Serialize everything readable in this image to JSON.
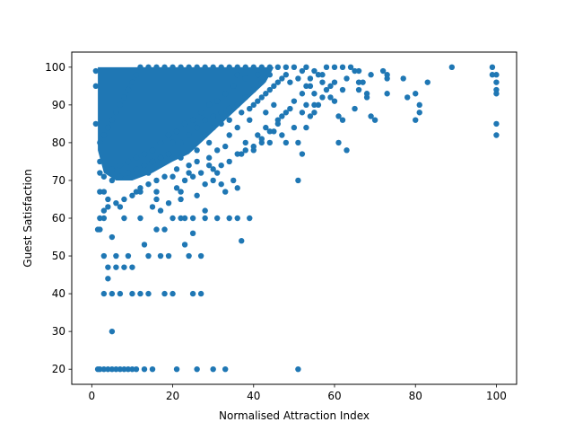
{
  "chart_data": {
    "type": "scatter",
    "title": "",
    "xlabel": "Normalised Attraction Index",
    "ylabel": "Guest Satisfaction",
    "xlim": [
      -4.95,
      105.0
    ],
    "ylim": [
      16.0,
      104.0
    ],
    "x_ticks": [
      0,
      20,
      40,
      60,
      80,
      100
    ],
    "y_ticks": [
      20,
      30,
      40,
      50,
      60,
      70,
      80,
      90,
      100
    ],
    "grid": false,
    "legend": "none",
    "marker_color": "#1f77b4",
    "series": [
      {
        "values": [
          [
            89,
            100
          ],
          [
            99,
            100
          ],
          [
            100,
            98
          ],
          [
            100,
            96
          ],
          [
            100,
            94
          ],
          [
            100,
            93
          ],
          [
            100,
            85
          ],
          [
            100,
            82
          ],
          [
            99,
            98
          ],
          [
            83,
            96
          ],
          [
            81,
            88
          ],
          [
            81,
            90
          ],
          [
            80,
            93
          ],
          [
            80,
            86
          ],
          [
            78,
            92
          ],
          [
            77,
            97
          ],
          [
            73,
            93
          ],
          [
            73,
            97
          ],
          [
            73,
            98
          ],
          [
            70,
            86
          ],
          [
            69,
            87
          ],
          [
            68,
            93
          ],
          [
            68,
            92
          ],
          [
            66,
            96
          ],
          [
            66,
            94
          ],
          [
            65,
            89
          ],
          [
            65,
            99
          ],
          [
            63,
            78
          ],
          [
            62,
            86
          ],
          [
            62,
            94
          ],
          [
            61,
            80
          ],
          [
            61,
            87
          ],
          [
            60,
            91
          ],
          [
            60,
            96
          ],
          [
            59,
            92
          ],
          [
            58,
            94
          ],
          [
            57,
            98
          ],
          [
            56,
            90
          ],
          [
            55,
            93
          ],
          [
            55,
            88
          ],
          [
            54,
            87
          ],
          [
            53,
            84
          ],
          [
            53,
            90
          ],
          [
            52,
            77
          ],
          [
            51,
            70
          ],
          [
            51,
            20
          ],
          [
            51,
            80
          ],
          [
            48,
            80
          ],
          [
            48,
            88
          ],
          [
            46,
            86
          ],
          [
            45,
            83
          ],
          [
            45,
            90
          ],
          [
            44,
            80
          ],
          [
            43,
            88
          ],
          [
            42,
            80
          ],
          [
            41,
            82
          ],
          [
            40,
            78
          ],
          [
            38,
            80
          ],
          [
            37,
            77
          ],
          [
            37,
            54
          ],
          [
            36,
            68
          ],
          [
            35,
            70
          ],
          [
            34,
            60
          ],
          [
            33,
            67
          ],
          [
            32,
            69
          ],
          [
            31,
            72
          ],
          [
            30,
            70
          ],
          [
            29,
            74
          ],
          [
            28,
            69
          ],
          [
            28,
            60
          ],
          [
            27,
            50
          ],
          [
            27,
            40
          ],
          [
            26,
            66
          ],
          [
            26,
            20
          ],
          [
            25,
            60
          ],
          [
            25,
            56
          ],
          [
            25,
            40
          ],
          [
            24,
            50
          ],
          [
            23,
            53
          ],
          [
            22,
            60
          ],
          [
            22,
            67
          ],
          [
            21,
            20
          ],
          [
            20,
            40
          ],
          [
            20,
            60
          ],
          [
            19,
            50
          ],
          [
            18,
            40
          ],
          [
            18,
            57
          ],
          [
            17,
            50
          ],
          [
            17,
            62
          ],
          [
            16,
            57
          ],
          [
            16,
            65
          ],
          [
            15,
            20
          ],
          [
            15,
            63
          ],
          [
            14,
            40
          ],
          [
            14,
            50
          ],
          [
            13,
            20
          ],
          [
            13,
            53
          ],
          [
            12,
            40
          ],
          [
            12,
            60
          ],
          [
            11,
            67
          ],
          [
            11,
            20
          ],
          [
            10,
            47
          ],
          [
            10,
            40
          ],
          [
            10,
            20
          ],
          [
            9,
            50
          ],
          [
            9,
            20
          ],
          [
            8,
            47
          ],
          [
            8,
            20
          ],
          [
            8,
            60
          ],
          [
            7,
            40
          ],
          [
            7,
            20
          ],
          [
            7,
            63
          ],
          [
            6,
            50
          ],
          [
            6,
            47
          ],
          [
            6,
            20
          ],
          [
            5,
            30
          ],
          [
            5,
            40
          ],
          [
            5,
            55
          ],
          [
            5,
            20
          ],
          [
            4,
            44
          ],
          [
            4,
            47
          ],
          [
            4,
            20
          ],
          [
            4,
            65
          ],
          [
            3,
            40
          ],
          [
            3,
            50
          ],
          [
            3,
            20
          ],
          [
            3,
            60
          ],
          [
            2,
            20
          ],
          [
            2,
            57
          ],
          [
            2,
            67
          ],
          [
            1.5,
            20
          ],
          [
            1.5,
            57
          ],
          [
            1,
            85
          ],
          [
            1,
            95
          ],
          [
            1,
            99
          ],
          [
            2,
            72
          ],
          [
            30,
            20
          ],
          [
            33,
            20
          ],
          [
            23,
            60
          ],
          [
            24,
            72
          ],
          [
            29,
            76
          ],
          [
            31,
            60
          ],
          [
            39,
            60
          ],
          [
            36,
            60
          ],
          [
            28,
            62
          ],
          [
            22,
            65
          ],
          [
            19,
            64
          ],
          [
            21,
            68
          ],
          [
            23,
            70
          ],
          [
            25,
            71
          ],
          [
            27,
            72
          ],
          [
            30,
            73
          ],
          [
            32,
            74
          ],
          [
            34,
            75
          ],
          [
            36,
            77
          ],
          [
            38,
            78
          ],
          [
            40,
            79
          ],
          [
            42,
            81
          ],
          [
            44,
            83
          ],
          [
            46,
            85
          ],
          [
            47,
            87
          ],
          [
            49,
            89
          ],
          [
            50,
            91
          ],
          [
            52,
            93
          ],
          [
            53,
            95
          ],
          [
            54,
            97
          ],
          [
            56,
            98
          ],
          [
            58,
            100
          ],
          [
            60,
            100
          ],
          [
            62,
            100
          ],
          [
            64,
            100
          ],
          [
            66,
            99
          ],
          [
            48,
            98
          ],
          [
            46,
            96
          ],
          [
            44,
            94
          ],
          [
            42,
            92
          ],
          [
            40,
            90
          ],
          [
            39,
            86
          ],
          [
            43,
            84
          ],
          [
            47,
            82
          ],
          [
            50,
            84
          ],
          [
            52,
            88
          ],
          [
            55,
            90
          ],
          [
            57,
            92
          ],
          [
            59,
            95
          ],
          [
            63,
            97
          ],
          [
            67,
            96
          ],
          [
            69,
            98
          ],
          [
            72,
            99
          ],
          [
            36,
            84
          ],
          [
            34,
            82
          ],
          [
            33,
            79
          ],
          [
            31,
            78
          ],
          [
            29,
            80
          ],
          [
            26,
            75
          ],
          [
            24,
            74
          ],
          [
            21,
            73
          ],
          [
            18,
            71
          ],
          [
            16,
            70
          ],
          [
            14,
            69
          ],
          [
            12,
            67
          ],
          [
            10,
            66
          ],
          [
            8,
            65
          ],
          [
            6,
            64
          ],
          [
            4,
            63
          ],
          [
            3,
            62
          ],
          [
            2,
            60
          ],
          [
            3,
            67
          ],
          [
            5,
            70
          ],
          [
            7,
            71
          ],
          [
            9,
            72
          ],
          [
            11,
            73
          ],
          [
            13,
            74
          ],
          [
            15,
            75
          ],
          [
            17,
            76
          ],
          [
            19,
            77
          ],
          [
            20,
            80
          ],
          [
            22,
            80
          ],
          [
            24,
            82
          ],
          [
            26,
            84
          ],
          [
            28,
            86
          ],
          [
            30,
            87
          ],
          [
            32,
            88
          ],
          [
            34,
            89
          ],
          [
            36,
            90
          ],
          [
            38,
            92
          ],
          [
            40,
            94
          ],
          [
            42,
            96
          ],
          [
            44,
            98
          ],
          [
            46,
            100
          ],
          [
            48,
            100
          ],
          [
            50,
            100
          ],
          [
            52,
            99
          ],
          [
            53,
            100
          ],
          [
            55,
            99
          ],
          [
            41,
            98
          ],
          [
            38,
            100
          ],
          [
            36,
            98
          ],
          [
            35,
            95
          ],
          [
            33,
            93
          ],
          [
            31,
            91
          ],
          [
            29,
            90
          ],
          [
            27,
            88
          ],
          [
            25,
            86
          ],
          [
            23,
            85
          ],
          [
            21,
            83
          ],
          [
            19,
            82
          ],
          [
            17,
            80
          ],
          [
            15,
            78
          ],
          [
            13,
            77
          ],
          [
            11,
            76
          ],
          [
            9,
            75
          ],
          [
            7,
            74
          ],
          [
            5,
            73
          ],
          [
            3,
            71
          ],
          [
            2,
            75
          ],
          [
            2,
            80
          ],
          [
            3,
            82
          ],
          [
            4,
            84
          ],
          [
            5,
            86
          ],
          [
            6,
            88
          ],
          [
            7,
            90
          ],
          [
            8,
            92
          ],
          [
            9,
            94
          ],
          [
            10,
            96
          ],
          [
            11,
            98
          ],
          [
            12,
            100
          ],
          [
            14,
            100
          ],
          [
            16,
            100
          ],
          [
            18,
            100
          ],
          [
            20,
            100
          ],
          [
            22,
            100
          ],
          [
            24,
            100
          ],
          [
            26,
            100
          ],
          [
            28,
            100
          ],
          [
            30,
            100
          ],
          [
            32,
            100
          ],
          [
            34,
            100
          ],
          [
            36,
            100
          ],
          [
            38,
            97
          ],
          [
            40,
            100
          ],
          [
            42,
            100
          ],
          [
            44,
            100
          ],
          [
            22,
            76
          ],
          [
            14,
            72
          ],
          [
            12,
            68
          ],
          [
            16,
            67
          ],
          [
            20,
            71
          ],
          [
            26,
            78
          ],
          [
            28,
            82
          ],
          [
            30,
            84
          ],
          [
            32,
            85
          ],
          [
            34,
            86
          ],
          [
            37,
            88
          ],
          [
            39,
            89
          ],
          [
            41,
            91
          ],
          [
            43,
            93
          ],
          [
            45,
            95
          ],
          [
            47,
            97
          ],
          [
            49,
            96
          ],
          [
            51,
            97
          ],
          [
            54,
            95
          ],
          [
            57,
            96
          ]
        ]
      }
    ]
  }
}
